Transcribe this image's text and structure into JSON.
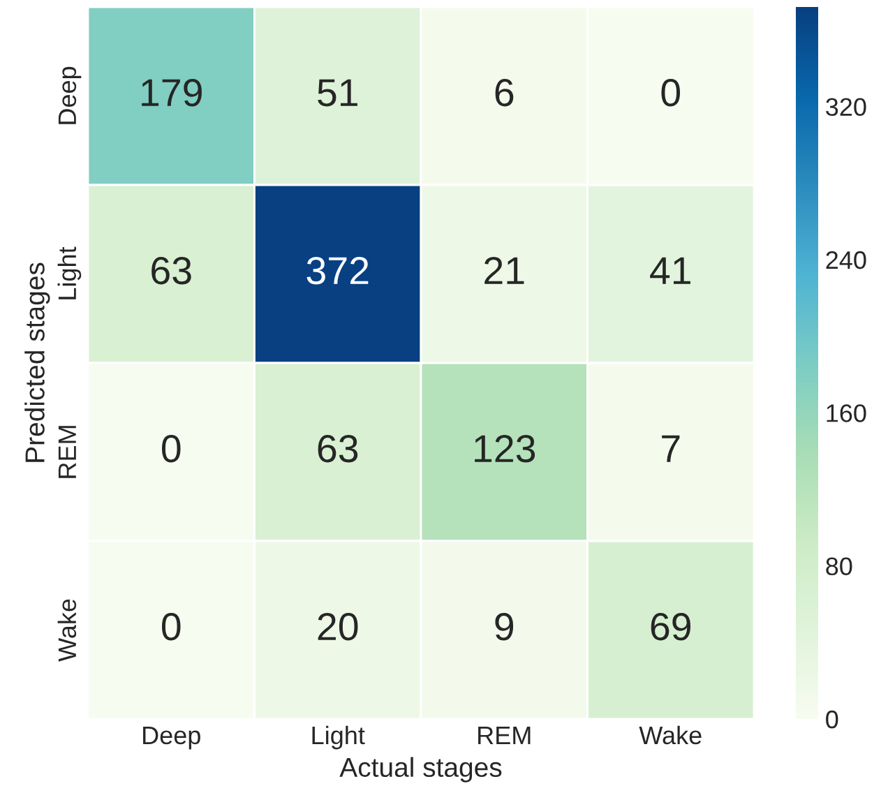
{
  "chart_data": {
    "type": "heatmap",
    "xlabel": "Actual stages",
    "ylabel": "Predicted stages",
    "categories": [
      "Deep",
      "Light",
      "REM",
      "Wake"
    ],
    "y_categories": [
      "Deep",
      "Light",
      "REM",
      "Wake"
    ],
    "cells": [
      [
        179,
        51,
        6,
        0
      ],
      [
        63,
        372,
        21,
        41
      ],
      [
        0,
        63,
        123,
        7
      ],
      [
        0,
        20,
        9,
        69
      ]
    ],
    "clim": [
      0,
      372
    ],
    "cticks": [
      0,
      80,
      160,
      240,
      320
    ],
    "data_labels": true
  }
}
